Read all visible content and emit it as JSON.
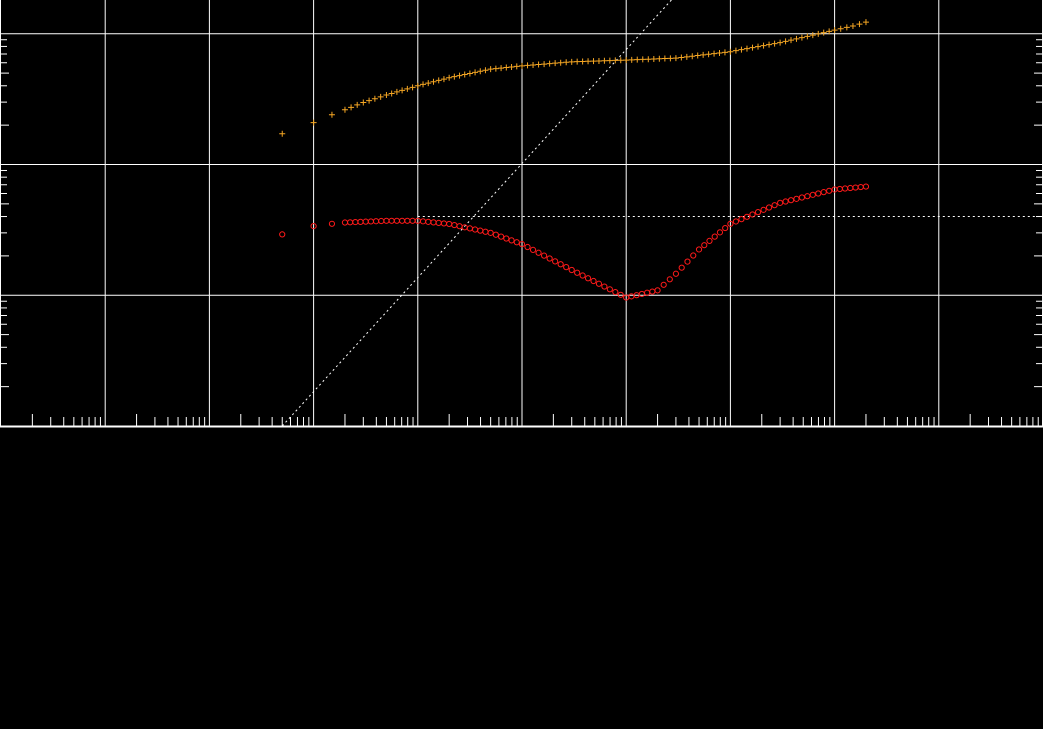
{
  "colors": {
    "background": "#000000",
    "grid": "#ffffff",
    "frame": "#ffffff",
    "reference_line": "#ffffff",
    "series_plus": "#f5a623",
    "series_circle": "#ff1a1a"
  },
  "chart_data": {
    "type": "scatter",
    "x_scale": "log",
    "y_scale": "log",
    "xlim": [
      0.01,
      100000000
    ],
    "ylim": [
      0.1,
      1000
    ],
    "grid": true,
    "tick_labels_shown": false,
    "title": "",
    "xlabel": "",
    "ylabel": "",
    "series": [
      {
        "marker": "plus",
        "color": "#f5a623",
        "x": [
          5,
          10,
          15,
          20,
          30,
          50,
          100,
          200,
          500,
          1000,
          3000,
          10000,
          30000,
          100000,
          300000,
          1000000,
          1500000,
          2000000
        ],
        "y": [
          17.2,
          20.9,
          24.0,
          26.2,
          29.8,
          34.0,
          40.0,
          46.1,
          53.6,
          56.8,
          61.0,
          62.9,
          65.1,
          72.9,
          85.6,
          106.5,
          114.5,
          122.7
        ]
      },
      {
        "marker": "circle",
        "color": "#ff1a1a",
        "x": [
          5,
          10,
          15,
          20,
          50,
          100,
          200,
          500,
          1000,
          3000,
          10000,
          20000,
          30000,
          50000,
          100000,
          300000,
          1000000,
          2000000
        ],
        "y": [
          2.92,
          3.38,
          3.52,
          3.6,
          3.71,
          3.71,
          3.51,
          3.0,
          2.46,
          1.56,
          0.96,
          1.09,
          1.46,
          2.24,
          3.52,
          5.09,
          6.44,
          6.78
        ]
      }
    ],
    "reference_lines": [
      {
        "kind": "slope",
        "x": [
          5,
          500000
        ],
        "y": [
          0.1,
          2300
        ]
      },
      {
        "kind": "horizontal",
        "x": [
          100,
          100000000
        ],
        "y": [
          4.0,
          4.0
        ]
      }
    ]
  }
}
